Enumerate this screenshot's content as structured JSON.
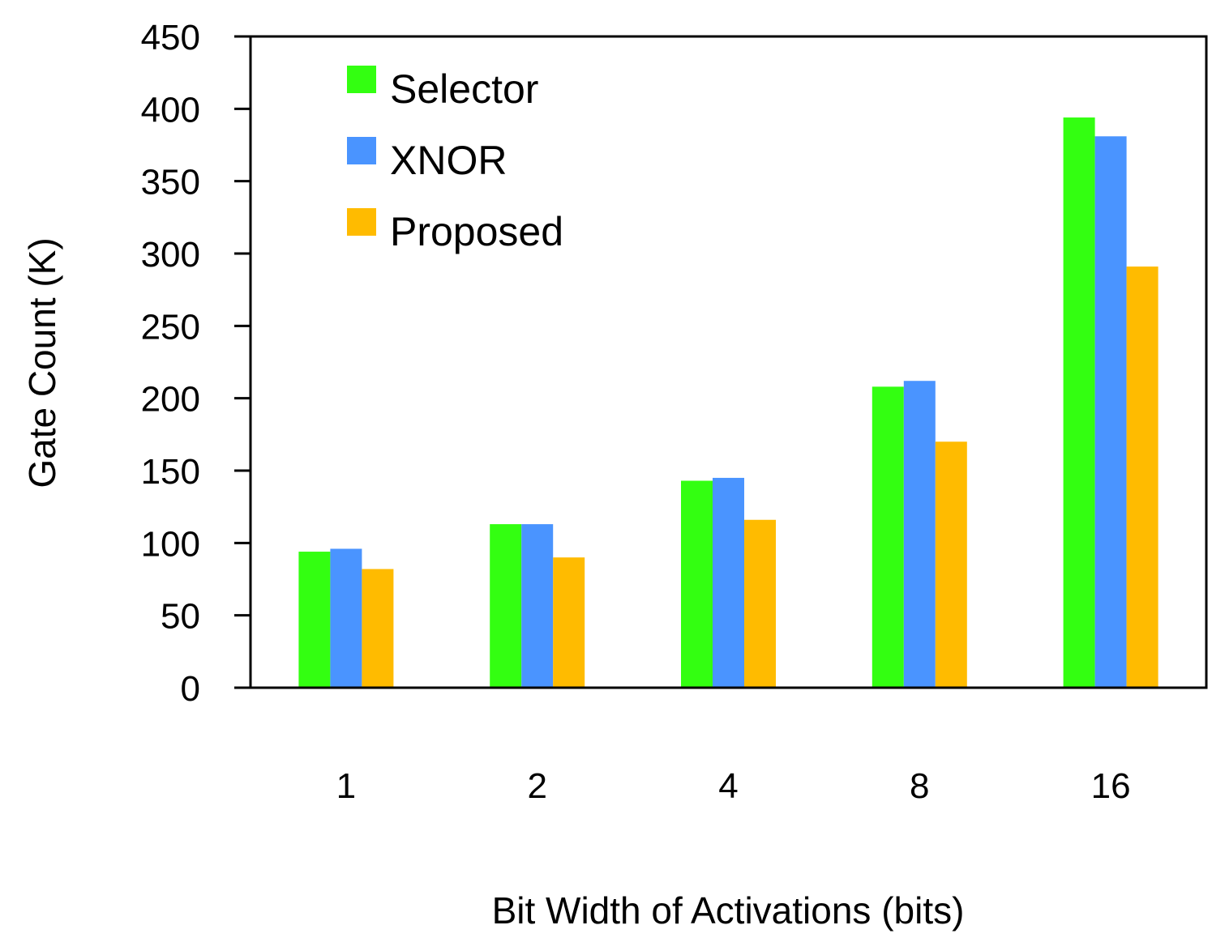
{
  "chart_data": {
    "type": "bar",
    "title": "",
    "xlabel": "Bit Width of Activations (bits)",
    "ylabel": "Gate Count (K)",
    "categories": [
      "1",
      "2",
      "4",
      "8",
      "16"
    ],
    "ylim": [
      0,
      450
    ],
    "yticks": [
      0,
      50,
      100,
      150,
      200,
      250,
      300,
      350,
      400,
      450
    ],
    "grid": false,
    "legend_position": "top-left",
    "series": [
      {
        "name": "Selector",
        "color": "#33ff11",
        "values": [
          94,
          113,
          143,
          208,
          394
        ]
      },
      {
        "name": "XNOR",
        "color": "#4a94ff",
        "values": [
          96,
          113,
          145,
          212,
          381
        ]
      },
      {
        "name": "Proposed",
        "color": "#ffbb00",
        "values": [
          82,
          90,
          116,
          170,
          291
        ]
      }
    ]
  }
}
